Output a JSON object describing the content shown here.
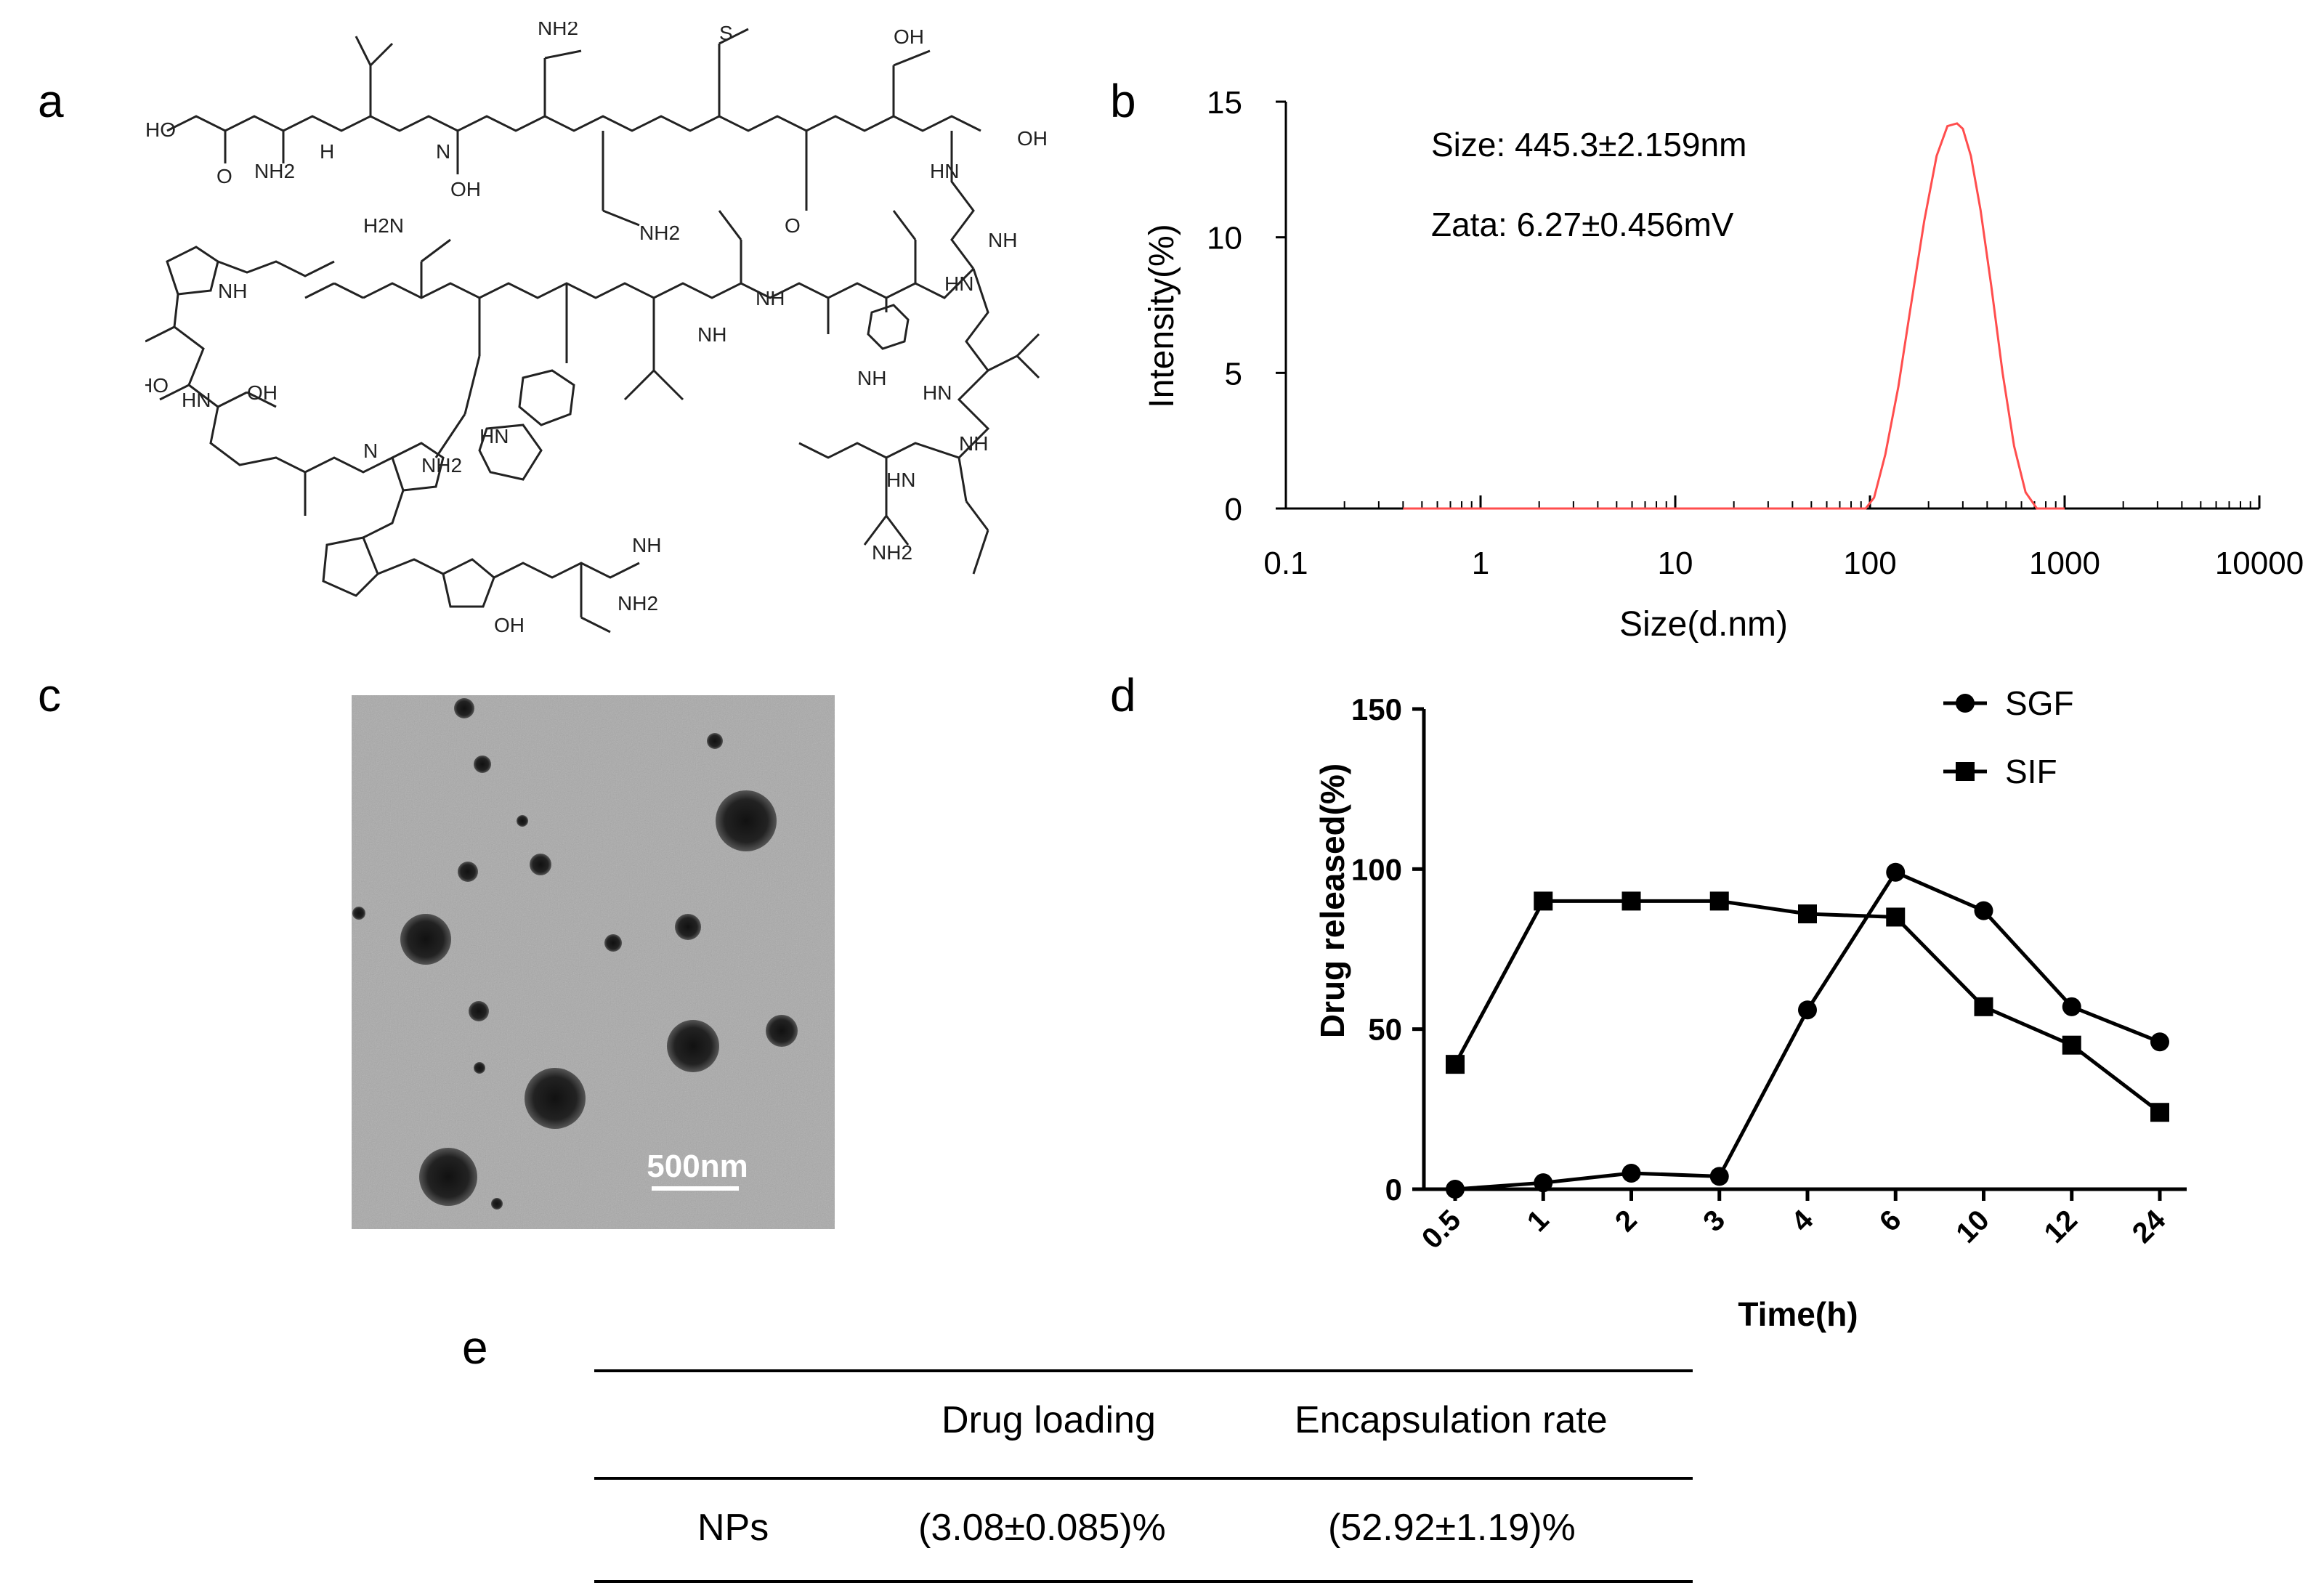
{
  "panels": {
    "a": "a",
    "b": "b",
    "c": "c",
    "d": "d",
    "e": "e"
  },
  "panel_a": {
    "atoms": [
      "HO",
      "O",
      "NH2",
      "H",
      "N",
      "OH",
      "NH2",
      "S",
      "OH",
      "O",
      "OH",
      "HN",
      "NH",
      "H2N",
      "NH2",
      "HN",
      "NH",
      "HO",
      "HN",
      "OH",
      "N",
      "NH",
      "NH2",
      "HN",
      "NH",
      "NH",
      "HN",
      "NH",
      "HN",
      "NH2",
      "NH",
      "NH2",
      "OH"
    ]
  },
  "tem_image": {
    "scale_bar_label": "500nm"
  },
  "chart_data": [
    {
      "panel": "b",
      "type": "line",
      "title": "",
      "xlabel": "Size(d.nm)",
      "ylabel": "Intensity(%)",
      "xscale": "log",
      "xlim": [
        0.1,
        10000
      ],
      "ylim": [
        0,
        15
      ],
      "xticks": [
        "0.1",
        "1",
        "10",
        "100",
        "1000",
        "10000"
      ],
      "yticks": [
        "0",
        "5",
        "10",
        "15"
      ],
      "annotations": [
        "Size: 445.3±2.159nm",
        "Zata: 6.27±0.456mV"
      ],
      "series": [
        {
          "name": "Intensity",
          "color": "#ff4d4d",
          "x": [
            0.4,
            50,
            95,
            105,
            120,
            140,
            160,
            190,
            220,
            250,
            280,
            300,
            330,
            370,
            420,
            480,
            550,
            630,
            720,
            1000
          ],
          "y": [
            0,
            0,
            0,
            0.4,
            2.0,
            4.5,
            7.2,
            10.6,
            13.0,
            14.1,
            14.2,
            14.0,
            13.0,
            11.0,
            8.2,
            5.0,
            2.3,
            0.6,
            0,
            0
          ]
        }
      ]
    },
    {
      "panel": "d",
      "type": "line",
      "title": "",
      "xlabel": "Time(h)",
      "ylabel": "Drug released(%)",
      "ylim": [
        0,
        150
      ],
      "categories": [
        "0.5",
        "1",
        "2",
        "3",
        "4",
        "6",
        "10",
        "12",
        "24"
      ],
      "yticks": [
        "0",
        "50",
        "100",
        "150"
      ],
      "legend_position": "top-right",
      "series": [
        {
          "name": "SGF",
          "marker": "circle",
          "values": [
            0,
            2,
            5,
            4,
            56,
            99,
            87,
            57,
            46
          ]
        },
        {
          "name": "SIF",
          "marker": "square",
          "values": [
            39,
            90,
            90,
            90,
            86,
            85,
            57,
            45,
            24
          ]
        }
      ]
    }
  ],
  "table_e": {
    "headers": [
      "",
      "Drug loading",
      "Encapsulation rate"
    ],
    "rows": [
      [
        "NPs",
        "(3.08±0.085)%",
        "(52.92±1.19)%"
      ]
    ]
  }
}
